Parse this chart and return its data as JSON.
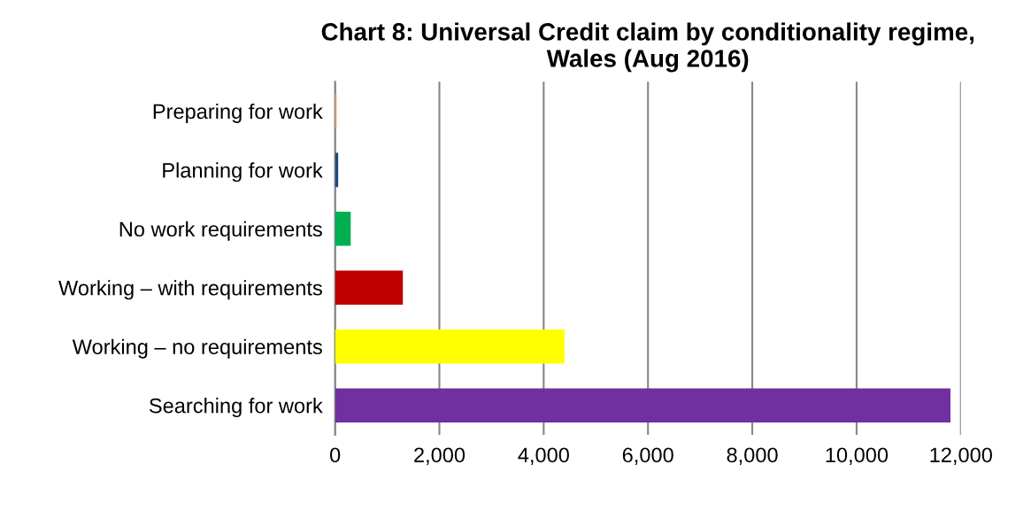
{
  "chart_data": {
    "type": "bar",
    "orientation": "horizontal",
    "title": "Chart 8: Universal Credit claim by conditionality regime,\nWales (Aug 2016)",
    "categories": [
      "Preparing for work",
      "Planning for work",
      "No work requirements",
      "Working – with requirements",
      "Working – no requirements",
      "Searching for work"
    ],
    "values": [
      30,
      60,
      300,
      1300,
      4400,
      11800
    ],
    "colors": [
      "#e6a66a",
      "#1f497d",
      "#00b050",
      "#c00000",
      "#ffff00",
      "#7030a0"
    ],
    "xlim": [
      0,
      12000
    ],
    "xticks": [
      0,
      {
        "value": 2000,
        "label": "2,000"
      },
      {
        "value": 4000,
        "label": "4,000"
      },
      {
        "value": 6000,
        "label": "6,000"
      },
      {
        "value": 8000,
        "label": "8,000"
      },
      {
        "value": 10000,
        "label": "10,000"
      },
      {
        "value": 12000,
        "label": "12,000"
      }
    ],
    "grid": "x"
  }
}
